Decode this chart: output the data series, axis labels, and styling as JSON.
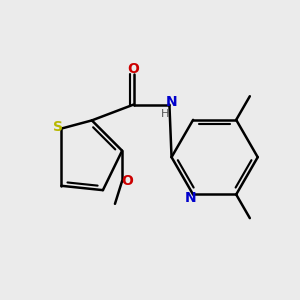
{
  "background_color": "#ebebeb",
  "atom_colors": {
    "S": "#b8b800",
    "N": "#0000cc",
    "O": "#cc0000",
    "C": "#000000",
    "H": "#555555"
  },
  "bond_lw": 1.8,
  "font_size_atom": 10,
  "font_size_small": 8
}
